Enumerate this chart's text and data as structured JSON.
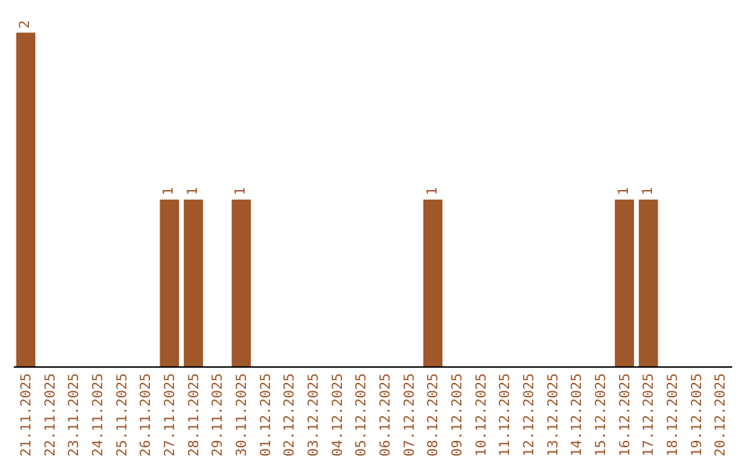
{
  "chart_data": {
    "type": "bar",
    "categories": [
      "21.11.2025",
      "22.11.2025",
      "23.11.2025",
      "24.11.2025",
      "25.11.2025",
      "26.11.2025",
      "27.11.2025",
      "28.11.2025",
      "29.11.2025",
      "30.11.2025",
      "01.12.2025",
      "02.12.2025",
      "03.12.2025",
      "04.12.2025",
      "05.12.2025",
      "06.12.2025",
      "07.12.2025",
      "08.12.2025",
      "09.12.2025",
      "10.12.2025",
      "11.12.2025",
      "12.12.2025",
      "13.12.2025",
      "14.12.2025",
      "15.12.2025",
      "16.12.2025",
      "17.12.2025",
      "18.12.2025",
      "19.12.2025",
      "20.12.2025"
    ],
    "values": [
      2,
      0,
      0,
      0,
      0,
      0,
      1,
      1,
      0,
      1,
      0,
      0,
      0,
      0,
      0,
      0,
      0,
      1,
      0,
      0,
      0,
      0,
      0,
      0,
      0,
      1,
      1,
      0,
      0,
      0
    ],
    "value_labels": [
      "2",
      null,
      null,
      null,
      null,
      null,
      "1",
      "1",
      null,
      "1",
      null,
      null,
      null,
      null,
      null,
      null,
      null,
      "1",
      null,
      null,
      null,
      null,
      null,
      null,
      null,
      "1",
      "1",
      null,
      null,
      null
    ],
    "color": "#a0572a"
  }
}
